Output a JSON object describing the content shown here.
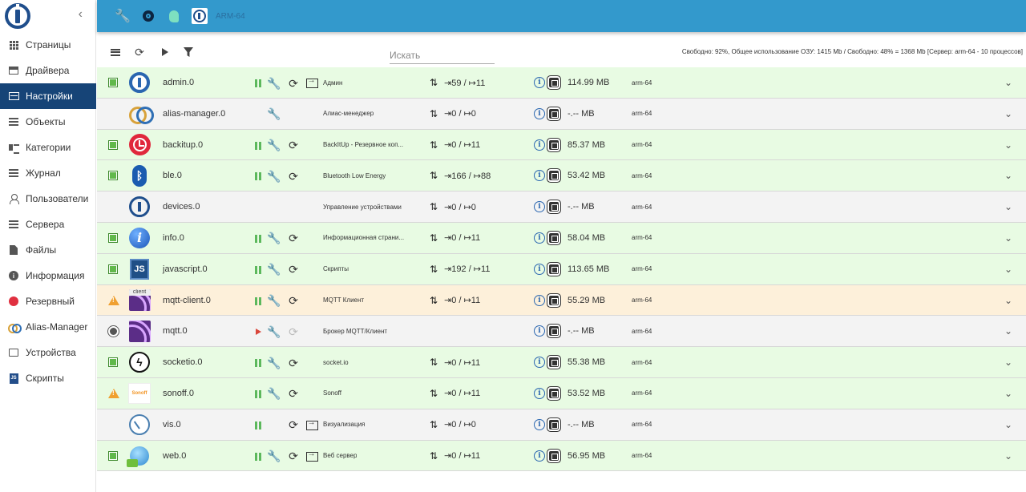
{
  "sidebar": {
    "collapse_label": "‹",
    "items": [
      {
        "label": "Страницы"
      },
      {
        "label": "Драйвера"
      },
      {
        "label": "Настройки"
      },
      {
        "label": "Объекты"
      },
      {
        "label": "Категории"
      },
      {
        "label": "Журнал"
      },
      {
        "label": "Пользователи"
      },
      {
        "label": "Сервера"
      },
      {
        "label": "Файлы"
      },
      {
        "label": "Информация"
      },
      {
        "label": "Резервный"
      },
      {
        "label": "Alias-Manager"
      },
      {
        "label": "Устройства"
      },
      {
        "label": "Скрипты"
      }
    ],
    "active_item": "Настройки"
  },
  "topbar": {
    "host_label": "ARM-64",
    "background": "#3399cc"
  },
  "toolbar": {
    "search_placeholder": "Искать",
    "status": "Свободно: 92%, Общее использование ОЗУ: 1415 Mb / Свободно: 48% = 1368 Mb [Сервер: arm-64 - 10 процессов]"
  },
  "colors": {
    "sidebar_active": "#164477",
    "row_running": "#e8fbe3",
    "row_stopped": "#f3f3f3",
    "row_warning": "#fdf0da"
  },
  "adapters": [
    {
      "name": "admin.0",
      "title": "Админ",
      "events": "⇥59 / ↦11",
      "memory": "114.99 MB",
      "host": "arm-64"
    },
    {
      "name": "alias-manager.0",
      "title": "Алиас-менеджер",
      "events": "⇥0 / ↦0",
      "memory": "-.-- MB",
      "host": "arm-64"
    },
    {
      "name": "backitup.0",
      "title": "BackItUp - Резервное коп...",
      "events": "⇥0 / ↦11",
      "memory": "85.37 MB",
      "host": "arm-64"
    },
    {
      "name": "ble.0",
      "title": "Bluetooth Low Energy",
      "events": "⇥166 / ↦88",
      "memory": "53.42 MB",
      "host": "arm-64"
    },
    {
      "name": "devices.0",
      "title": "Управление устройствами",
      "events": "⇥0 / ↦0",
      "memory": "-.-- MB",
      "host": "arm-64"
    },
    {
      "name": "info.0",
      "title": "Информационная страни...",
      "events": "⇥0 / ↦11",
      "memory": "58.04 MB",
      "host": "arm-64"
    },
    {
      "name": "javascript.0",
      "title": "Скрипты",
      "events": "⇥192 / ↦11",
      "memory": "113.65 MB",
      "host": "arm-64"
    },
    {
      "name": "mqtt-client.0",
      "title": "MQTT Клиент",
      "events": "⇥0 / ↦11",
      "memory": "55.29 MB",
      "host": "arm-64"
    },
    {
      "name": "mqtt.0",
      "title": "Брокер MQTT/Клиент",
      "events": "",
      "memory": "-.-- MB",
      "host": "arm-64"
    },
    {
      "name": "socketio.0",
      "title": "socket.io",
      "events": "⇥0 / ↦11",
      "memory": "55.38 MB",
      "host": "arm-64"
    },
    {
      "name": "sonoff.0",
      "title": "Sonoff",
      "events": "⇥0 / ↦11",
      "memory": "53.52 MB",
      "host": "arm-64"
    },
    {
      "name": "vis.0",
      "title": "Визуализация",
      "events": "⇥0 / ↦0",
      "memory": "-.-- MB",
      "host": "arm-64"
    },
    {
      "name": "web.0",
      "title": "Веб сервер",
      "events": "⇥0 / ↦11",
      "memory": "56.95 MB",
      "host": "arm-64"
    }
  ],
  "icon_labels": {
    "mqtt_client": "client",
    "sonoff": "Sonoff",
    "javascript": "JS",
    "info": "i",
    "ble": "ᛒ"
  }
}
